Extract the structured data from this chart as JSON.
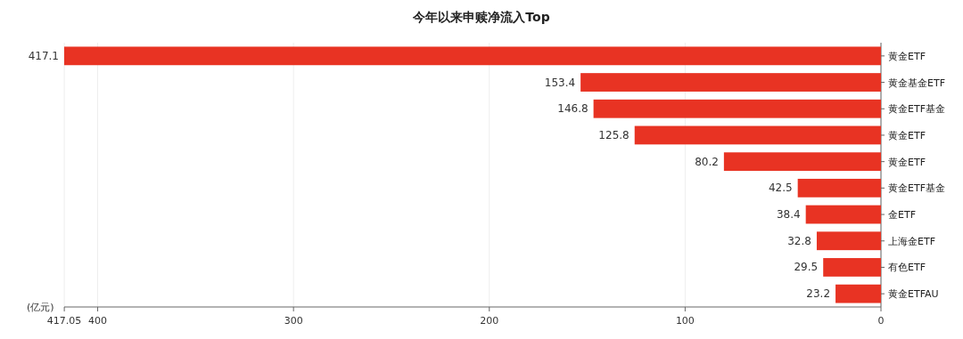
{
  "chart_data": {
    "type": "bar",
    "orientation": "horizontal",
    "title": "今年以来申赎净流入Top",
    "xlabel": "(亿元)",
    "categories": [
      "黄金ETF",
      "黄金基金ETF",
      "黄金ETF基金",
      "黄金ETF",
      "黄金ETF",
      "黄金ETF基金",
      "金ETF",
      "上海金ETF",
      "有色ETF",
      "黄金ETFAU"
    ],
    "values": [
      417.1,
      153.4,
      146.8,
      125.8,
      80.2,
      42.5,
      38.4,
      32.8,
      29.5,
      23.2
    ],
    "color": "#e83323",
    "xlim": [
      417.1,
      0
    ],
    "xticks": [
      417.05,
      400,
      300,
      200,
      100,
      0
    ],
    "grid": "x",
    "data_labels": true
  }
}
